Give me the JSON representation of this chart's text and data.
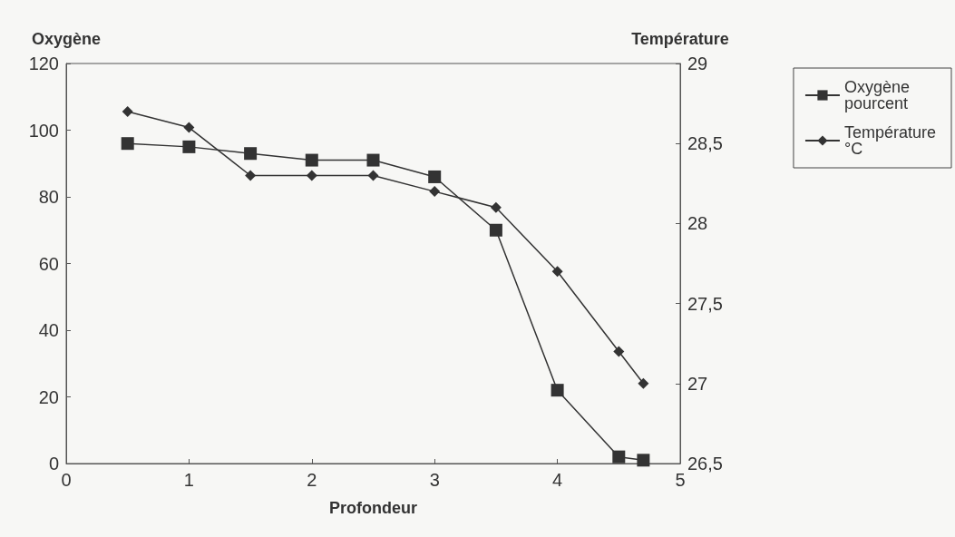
{
  "chart_data": {
    "type": "line",
    "xlabel": "Profondeur",
    "ylabel": "Oxygène",
    "y2label": "Température",
    "x": [
      0.5,
      1,
      1.5,
      2,
      2.5,
      3,
      3.5,
      4,
      4.5,
      4.7
    ],
    "series": [
      {
        "name": "Oxygène pourcent",
        "color": "#333333",
        "marker": "square",
        "values": [
          96,
          95,
          93,
          91,
          91,
          86,
          70,
          22,
          2,
          1
        ]
      },
      {
        "name": "Température °C",
        "color": "#333333",
        "marker": "diamond",
        "axis": "y2",
        "values": [
          28.7,
          28.6,
          28.3,
          28.3,
          28.3,
          28.2,
          28.1,
          27.7,
          27.2,
          27.0
        ]
      }
    ],
    "xlim": [
      0,
      5
    ],
    "xticks": [
      0,
      1,
      2,
      3,
      4,
      5
    ],
    "ylim": [
      0,
      120
    ],
    "yticks": [
      0,
      20,
      40,
      60,
      80,
      100,
      120
    ],
    "y2lim": [
      26.5,
      29
    ],
    "y2ticks": [
      {
        "value": 26.5,
        "label": "26,5"
      },
      27,
      {
        "value": 27.5,
        "label": "27,5"
      },
      28,
      {
        "value": 28.5,
        "label": "28,5"
      },
      29
    ],
    "grid": false,
    "legend": "right",
    "line_style": "solid"
  }
}
